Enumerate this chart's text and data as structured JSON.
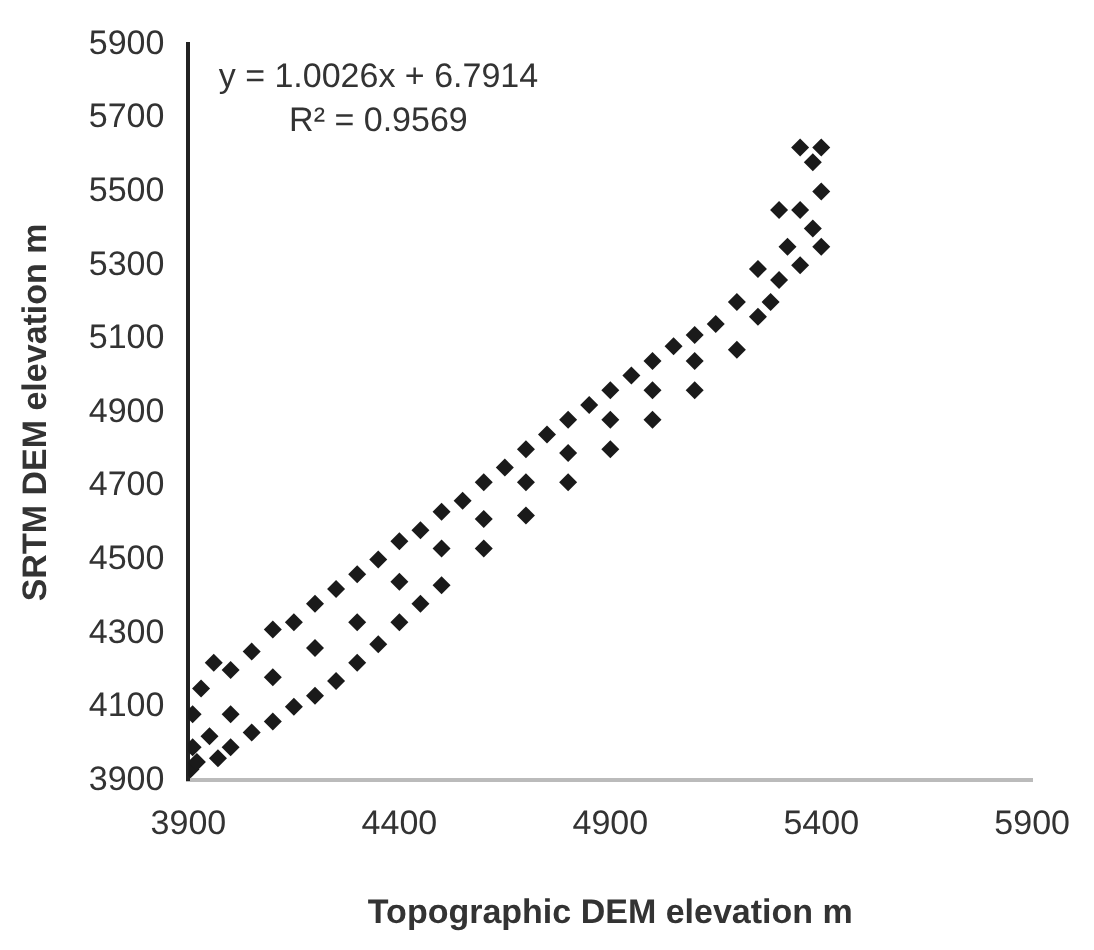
{
  "chart_data": {
    "type": "scatter",
    "xlabel": "Topographic DEM elevation m",
    "ylabel": "SRTM DEM elevation m",
    "annotations": [
      "y = 1.0026x + 6.7914",
      "R² = 0.9569"
    ],
    "x": [
      3905,
      3910,
      3910,
      3920,
      3930,
      3950,
      3960,
      3970,
      4000,
      4000,
      4000,
      4050,
      4050,
      4100,
      4100,
      4100,
      4150,
      4150,
      4200,
      4200,
      4200,
      4250,
      4250,
      4300,
      4300,
      4300,
      4350,
      4350,
      4400,
      4400,
      4400,
      4450,
      4450,
      4500,
      4500,
      4500,
      4550,
      4600,
      4600,
      4600,
      4650,
      4700,
      4700,
      4700,
      4750,
      4800,
      4800,
      4800,
      4850,
      4900,
      4900,
      4900,
      4950,
      5000,
      5000,
      5000,
      5050,
      5100,
      5100,
      5100,
      5150,
      5200,
      5200,
      5250,
      5250,
      5280,
      5300,
      5300,
      5320,
      5350,
      5350,
      5350,
      5380,
      5380,
      5400,
      5400,
      5400
    ],
    "series": [
      {
        "color": "#1a1a1a",
        "values": [
          3930,
          3990,
          4080,
          3950,
          4150,
          4020,
          4220,
          3960,
          4200,
          4080,
          3990,
          4250,
          4030,
          4310,
          4180,
          4060,
          4330,
          4100,
          4380,
          4260,
          4130,
          4420,
          4170,
          4460,
          4330,
          4220,
          4500,
          4270,
          4550,
          4440,
          4330,
          4580,
          4380,
          4630,
          4530,
          4430,
          4660,
          4710,
          4610,
          4530,
          4750,
          4800,
          4710,
          4620,
          4840,
          4880,
          4790,
          4710,
          4920,
          4960,
          4880,
          4800,
          5000,
          5040,
          4960,
          4880,
          5080,
          5110,
          5040,
          4960,
          5140,
          5200,
          5070,
          5290,
          5160,
          5200,
          5450,
          5260,
          5350,
          5620,
          5450,
          5300,
          5580,
          5400,
          5620,
          5500,
          5350
        ]
      }
    ],
    "xlim": [
      3900,
      5900
    ],
    "xticks": [
      3900,
      4400,
      4900,
      5400,
      5900
    ],
    "ylim": [
      3900,
      5900
    ],
    "yticks": [
      3900,
      4100,
      4300,
      4500,
      4700,
      4900,
      5100,
      5300,
      5500,
      5700,
      5900
    ],
    "grid": false,
    "legend": false,
    "marker": "diamond"
  }
}
